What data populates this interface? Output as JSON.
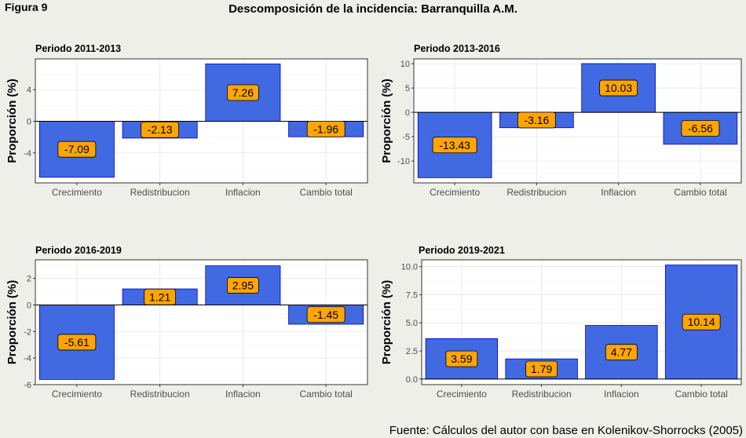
{
  "figure_label": "Figura 9",
  "title": "Descomposición de la incidencia: Barranquilla A.M.",
  "source": "Fuente: Cálculos del autor con base en Kolenikov-Shorrocks (2005)",
  "colors": {
    "bar_fill": "#4169e1",
    "bar_stroke": "#0000cd",
    "label_fill": "#ffa500",
    "panel_bg": "#ffffff",
    "page_bg": "#efefea",
    "grid": "#ebebeb"
  },
  "chart_data": [
    {
      "type": "bar",
      "title": "Periodo 2011-2013",
      "ylabel": "Proporción (%)",
      "categories": [
        "Crecimiento",
        "Redistribucion",
        "Inflacion",
        "Cambio total"
      ],
      "values": [
        -7.09,
        -2.13,
        7.26,
        -1.96
      ],
      "labels": [
        "-7.09",
        "-2.13",
        "7.26",
        "-1.96"
      ],
      "ylim": [
        -7.8,
        7.9
      ],
      "yticks": [
        -4,
        0,
        4
      ],
      "ytick_labels": [
        "-4",
        "0",
        "4"
      ],
      "minor_ticks": [
        -6,
        -2,
        2,
        6
      ],
      "grid": true
    },
    {
      "type": "bar",
      "title": "Periodo 2013-2016",
      "ylabel": "Proporción (%)",
      "categories": [
        "Crecimiento",
        "Redistribucion",
        "Inflacion",
        "Cambio total"
      ],
      "values": [
        -13.43,
        -3.16,
        10.03,
        -6.56
      ],
      "labels": [
        "-13.43",
        "-3.16",
        "10.03",
        "-6.56"
      ],
      "ylim": [
        -14.5,
        11.0
      ],
      "yticks": [
        -10,
        -5,
        0,
        5,
        10
      ],
      "ytick_labels": [
        "-10",
        "-5",
        "0",
        "5",
        "10"
      ],
      "minor_ticks": [
        -12.5,
        -7.5,
        -2.5,
        2.5,
        7.5
      ],
      "grid": true
    },
    {
      "type": "bar",
      "title": "Periodo 2016-2019",
      "ylabel": "Proporción (%)",
      "categories": [
        "Crecimiento",
        "Redistribucion",
        "Inflacion",
        "Cambio total"
      ],
      "values": [
        -5.61,
        1.21,
        2.95,
        -1.45
      ],
      "labels": [
        "-5.61",
        "1.21",
        "2.95",
        "-1.45"
      ],
      "ylim": [
        -6.0,
        3.4
      ],
      "yticks": [
        -6,
        -4,
        -2,
        0,
        2
      ],
      "ytick_labels": [
        "-6",
        "-4",
        "-2",
        "0",
        "2"
      ],
      "minor_ticks": [
        -5,
        -3,
        -1,
        1,
        3
      ],
      "grid": true
    },
    {
      "type": "bar",
      "title": "Periodo 2019-2021",
      "ylabel": "Proporción (%)",
      "categories": [
        "Crecimiento",
        "Redistribucion",
        "Inflacion",
        "Cambio total"
      ],
      "values": [
        3.59,
        1.79,
        4.77,
        10.14
      ],
      "labels": [
        "3.59",
        "1.79",
        "4.77",
        "10.14"
      ],
      "ylim": [
        -0.5,
        10.6
      ],
      "yticks": [
        0,
        2.5,
        5,
        7.5,
        10
      ],
      "ytick_labels": [
        "0.0",
        "2.5",
        "5.0",
        "7.5",
        "10.0"
      ],
      "minor_ticks": [
        1.25,
        3.75,
        6.25,
        8.75
      ],
      "grid": true
    }
  ]
}
